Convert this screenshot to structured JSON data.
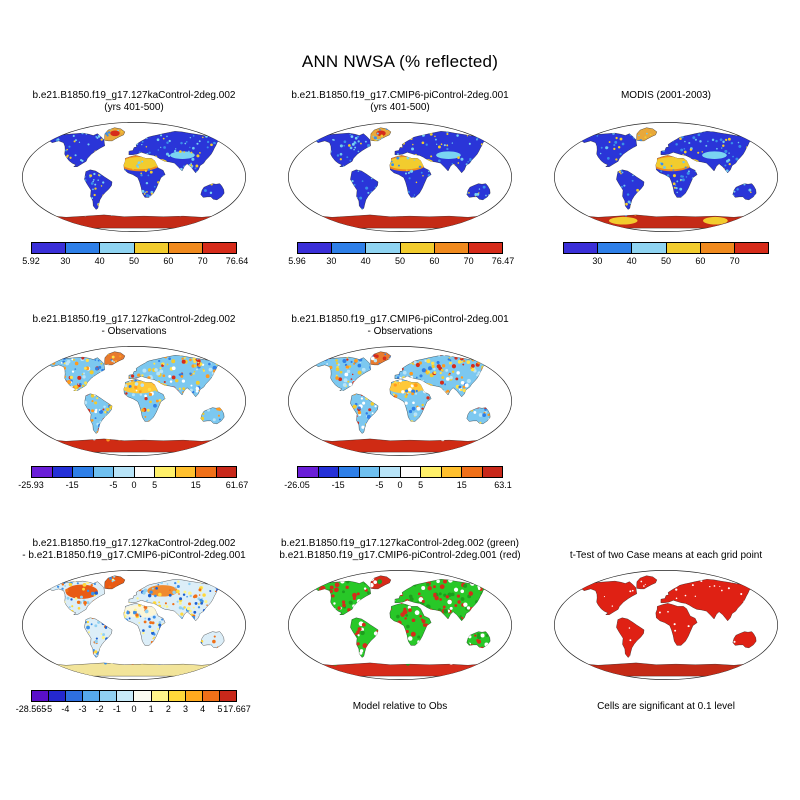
{
  "figure_title": "ANN NWSA (% reflected)",
  "rows": [
    {
      "name": "climatology",
      "panels": [
        {
          "name": "case1-climo",
          "col": 0,
          "title_lines": [
            "b.e21.B1850.f19_g17.127kaControl-2deg.002",
            "(yrs 401-500)"
          ],
          "map_style": "model_albedo",
          "colorbar": {
            "colors": [
              "#3a2fd8",
              "#2e7fe8",
              "#8fd4f2",
              "#f2cc2e",
              "#f08a1e",
              "#d62b1a"
            ],
            "ticks": [
              "5.92",
              "30",
              "40",
              "50",
              "60",
              "70",
              "76.64"
            ],
            "ticks_pos": [
              0,
              0.167,
              0.333,
              0.5,
              0.667,
              0.833,
              1
            ]
          }
        },
        {
          "name": "case2-climo",
          "col": 1,
          "title_lines": [
            "b.e21.B1850.f19_g17.CMIP6-piControl-2deg.001",
            "(yrs 401-500)"
          ],
          "map_style": "model_albedo2",
          "colorbar": {
            "colors": [
              "#3a2fd8",
              "#2e7fe8",
              "#8fd4f2",
              "#f2cc2e",
              "#f08a1e",
              "#d62b1a"
            ],
            "ticks": [
              "5.96",
              "30",
              "40",
              "50",
              "60",
              "70",
              "76.47"
            ],
            "ticks_pos": [
              0,
              0.167,
              0.333,
              0.5,
              0.667,
              0.833,
              1
            ]
          }
        },
        {
          "name": "modis-climo",
          "col": 2,
          "title_lines": [
            "MODIS (2001-2003)"
          ],
          "map_style": "modis_albedo",
          "colorbar": {
            "colors": [
              "#3a2fd8",
              "#2e7fe8",
              "#8fd4f2",
              "#f2cc2e",
              "#f08a1e",
              "#d62b1a"
            ],
            "ticks": [
              "30",
              "40",
              "50",
              "60",
              "70"
            ],
            "ticks_pos": [
              0.167,
              0.333,
              0.5,
              0.667,
              0.833
            ]
          }
        }
      ]
    },
    {
      "name": "model-minus-obs",
      "panels": [
        {
          "name": "case1-minus-obs",
          "col": 0,
          "title_lines": [
            "b.e21.B1850.f19_g17.127kaControl-2deg.002",
            "- Observations"
          ],
          "map_style": "diff_obs",
          "colorbar": {
            "colors": [
              "#6a1ed8",
              "#2430d8",
              "#2e7fe8",
              "#6fc0f0",
              "#b8e4f8",
              "#fcfcfc",
              "#fff06a",
              "#ffc02e",
              "#f07018",
              "#c8281a"
            ],
            "ticks": [
              "-25.93",
              "-15",
              "-5",
              "0",
              "5",
              "15",
              "61.67"
            ],
            "ticks_pos": [
              0,
              0.2,
              0.4,
              0.5,
              0.6,
              0.8,
              1
            ]
          }
        },
        {
          "name": "case2-minus-obs",
          "col": 1,
          "title_lines": [
            "b.e21.B1850.f19_g17.CMIP6-piControl-2deg.001",
            "- Observations"
          ],
          "map_style": "diff_obs2",
          "colorbar": {
            "colors": [
              "#6a1ed8",
              "#2430d8",
              "#2e7fe8",
              "#6fc0f0",
              "#b8e4f8",
              "#fcfcfc",
              "#fff06a",
              "#ffc02e",
              "#f07018",
              "#c8281a"
            ],
            "ticks": [
              "-26.05",
              "-15",
              "-5",
              "0",
              "5",
              "15",
              "63.1"
            ],
            "ticks_pos": [
              0,
              0.2,
              0.4,
              0.5,
              0.6,
              0.8,
              1
            ]
          }
        }
      ]
    },
    {
      "name": "case-difference-and-significance",
      "panels": [
        {
          "name": "case1-minus-case2",
          "col": 0,
          "title_lines": [
            "b.e21.B1850.f19_g17.127kaControl-2deg.002",
            "- b.e21.B1850.f19_g17.CMIP6-piControl-2deg.001"
          ],
          "map_style": "diff_case",
          "colorbar": {
            "colors": [
              "#5a10c8",
              "#2428d0",
              "#2e6fe0",
              "#56a8ec",
              "#8fd0f2",
              "#c8eaf8",
              "#fbfbf0",
              "#fff48a",
              "#ffd83a",
              "#ffaa1e",
              "#f07018",
              "#c8281a"
            ],
            "ticks": [
              "-28.565",
              "-5",
              "-4",
              "-3",
              "-2",
              "-1",
              "0",
              "1",
              "2",
              "3",
              "4",
              "5",
              "17.667"
            ],
            "ticks_pos": [
              0,
              0.0833,
              0.1667,
              0.25,
              0.3333,
              0.4167,
              0.5,
              0.5833,
              0.6667,
              0.75,
              0.8333,
              0.9167,
              1
            ]
          }
        },
        {
          "name": "model-vs-obs-significance",
          "col": 1,
          "title_lines": [
            "b.e21.B1850.f19_g17.127kaControl-2deg.002 (green)",
            "b.e21.B1850.f19_g17.CMIP6-piControl-2deg.001 (red)"
          ],
          "map_style": "sig_green_red",
          "caption": "Model relative to Obs"
        },
        {
          "name": "ttest-significance",
          "col": 2,
          "title_lines": [
            "",
            "t-Test of two Case means at each grid point"
          ],
          "map_style": "ttest_red",
          "caption": "Cells are significant at 0.1 level"
        }
      ]
    }
  ],
  "map_styles": {
    "model_albedo": {
      "regions": {
        "land": "#2a35d8",
        "greenland": "#e8a83a",
        "antarctica": "#c42a16"
      },
      "patches": [
        {
          "id": "sahara_ring",
          "color": "#f08a1e"
        },
        {
          "id": "sahara",
          "color": "#f2cc2e"
        },
        {
          "id": "arabia",
          "color": "#f2cc2e"
        },
        {
          "id": "central_asia",
          "color": "#7ad4f2"
        },
        {
          "id": "greenland_spot",
          "color": "#d62b1a"
        }
      ],
      "speckle": {
        "seed": 7,
        "count": 420,
        "colors": [
          "#6fc8f0",
          "#3a8fe8",
          "#f2cc2e",
          "#7ad4f2"
        ],
        "rmin": 0.7,
        "rmax": 1.6
      }
    },
    "model_albedo2": {
      "regions": {
        "land": "#2a35d8",
        "greenland": "#e8a83a",
        "antarctica": "#c42a16"
      },
      "patches": [
        {
          "id": "sahara_ring",
          "color": "#f08a1e"
        },
        {
          "id": "sahara",
          "color": "#f2cc2e"
        },
        {
          "id": "arabia",
          "color": "#f2cc2e"
        },
        {
          "id": "central_asia",
          "color": "#7ad4f2"
        },
        {
          "id": "greenland_spot",
          "color": "#d62b1a"
        }
      ],
      "speckle": {
        "seed": 13,
        "count": 420,
        "colors": [
          "#6fc8f0",
          "#3a8fe8",
          "#f2cc2e",
          "#7ad4f2"
        ],
        "rmin": 0.7,
        "rmax": 1.6
      }
    },
    "modis_albedo": {
      "regions": {
        "land": "#2a35d8",
        "greenland": "#e8a83a",
        "antarctica": "#c42a16"
      },
      "patches": [
        {
          "id": "sahara_ring",
          "color": "#f08a1e"
        },
        {
          "id": "sahara",
          "color": "#f2cc2e"
        },
        {
          "id": "arabia",
          "color": "#f2cc2e"
        },
        {
          "id": "central_asia",
          "color": "#7ad4f2"
        },
        {
          "id": "ant_left",
          "color": "#f2cc2e"
        },
        {
          "id": "ant_right",
          "color": "#f2cc2e"
        }
      ],
      "speckle": {
        "seed": 21,
        "count": 380,
        "colors": [
          "#6fc8f0",
          "#3a8fe8",
          "#f2cc2e"
        ],
        "rmin": 0.7,
        "rmax": 1.6
      }
    },
    "diff_obs": {
      "regions": {
        "land": "#7cc8f0",
        "greenland": "#e87a2e",
        "antarctica": "#cf2b14"
      },
      "patches": [
        {
          "id": "sahara",
          "color": "#ffc838"
        },
        {
          "id": "arabia",
          "color": "#ffc838"
        }
      ],
      "speckle": {
        "seed": 31,
        "count": 760,
        "colors": [
          "#ffe14a",
          "#ff9a1e",
          "#d62b1a",
          "#2e7fe8",
          "#b8e4f8",
          "#ffffff",
          "#f2cc2e"
        ],
        "rmin": 0.8,
        "rmax": 2.2
      }
    },
    "diff_obs2": {
      "regions": {
        "land": "#7cc8f0",
        "greenland": "#e87a2e",
        "antarctica": "#cf2b14"
      },
      "patches": [
        {
          "id": "sahara",
          "color": "#ffc838"
        },
        {
          "id": "arabia",
          "color": "#ffc838"
        }
      ],
      "speckle": {
        "seed": 41,
        "count": 760,
        "colors": [
          "#ffe14a",
          "#ff9a1e",
          "#d62b1a",
          "#2e7fe8",
          "#b8e4f8",
          "#ffffff",
          "#f2cc2e"
        ],
        "rmin": 0.8,
        "rmax": 2.2
      }
    },
    "diff_case": {
      "regions": {
        "land": "#dceef8",
        "greenland": "#e85a14",
        "antarctica": "#f2e49a"
      },
      "patches": [
        {
          "id": "na_west",
          "color": "#e85a14"
        },
        {
          "id": "russia",
          "color": "#f08a2e"
        },
        {
          "id": "sahara",
          "color": "#fbf6d8"
        }
      ],
      "speckle": {
        "seed": 51,
        "count": 700,
        "colors": [
          "#3a8fe8",
          "#8fd0f2",
          "#ffd83a",
          "#1b5fd0",
          "#fff48a",
          "#f07018"
        ],
        "rmin": 0.8,
        "rmax": 2.0
      }
    },
    "sig_green_red": {
      "regions": {
        "land": "#28c828",
        "greenland": "#d62b1a",
        "antarctica": "#d62b1a"
      },
      "patches": [],
      "speckle": {
        "seed": 61,
        "count": 520,
        "colors": [
          "#d62b1a",
          "#d62b1a",
          "#ffffff",
          "#1d9e1d"
        ],
        "rmin": 1.2,
        "rmax": 2.6
      }
    },
    "ttest_red": {
      "regions": {
        "land": "#df2114",
        "greenland": "#df2114",
        "antarctica": "#c42a16"
      },
      "patches": [],
      "speckle": {
        "seed": 71,
        "count": 90,
        "colors": [
          "#ffffff"
        ],
        "rmin": 0.5,
        "rmax": 1.2
      }
    }
  },
  "chart_data": [
    {
      "type": "heatmap",
      "panel": "case1-climo",
      "title": "b.e21.B1850.f19_g17.127kaControl-2deg.002 (yrs 401-500)",
      "variable": "ANN NWSA",
      "units": "% reflected",
      "projection": "robinson",
      "colorbar_ticks": [
        5.92,
        30,
        40,
        50,
        60,
        70,
        76.64
      ],
      "min": 5.92,
      "max": 76.64
    },
    {
      "type": "heatmap",
      "panel": "case2-climo",
      "title": "b.e21.B1850.f19_g17.CMIP6-piControl-2deg.001 (yrs 401-500)",
      "variable": "ANN NWSA",
      "units": "% reflected",
      "projection": "robinson",
      "colorbar_ticks": [
        5.96,
        30,
        40,
        50,
        60,
        70,
        76.47
      ],
      "min": 5.96,
      "max": 76.47
    },
    {
      "type": "heatmap",
      "panel": "modis-climo",
      "title": "MODIS (2001-2003)",
      "variable": "ANN NWSA",
      "units": "% reflected",
      "projection": "robinson",
      "colorbar_ticks": [
        30,
        40,
        50,
        60,
        70
      ]
    },
    {
      "type": "heatmap",
      "panel": "case1-minus-obs",
      "title": "b.e21.B1850.f19_g17.127kaControl-2deg.002 - Observations",
      "variable": "ANN NWSA difference",
      "units": "% reflected",
      "projection": "robinson",
      "colorbar_ticks": [
        -25.93,
        -15,
        -5,
        0,
        5,
        15,
        61.67
      ],
      "min": -25.93,
      "max": 61.67
    },
    {
      "type": "heatmap",
      "panel": "case2-minus-obs",
      "title": "b.e21.B1850.f19_g17.CMIP6-piControl-2deg.001 - Observations",
      "variable": "ANN NWSA difference",
      "units": "% reflected",
      "projection": "robinson",
      "colorbar_ticks": [
        -26.05,
        -15,
        -5,
        0,
        5,
        15,
        63.1
      ],
      "min": -26.05,
      "max": 63.1
    },
    {
      "type": "heatmap",
      "panel": "case1-minus-case2",
      "title": "b.e21.B1850.f19_g17.127kaControl-2deg.002 - b.e21.B1850.f19_g17.CMIP6-piControl-2deg.001",
      "variable": "ANN NWSA difference",
      "units": "% reflected",
      "projection": "robinson",
      "colorbar_ticks": [
        -28.565,
        -5,
        -4,
        -3,
        -2,
        -1,
        0,
        1,
        2,
        3,
        4,
        5,
        17.667
      ],
      "min": -28.565,
      "max": 17.667
    },
    {
      "type": "significance-map",
      "panel": "model-vs-obs-significance",
      "legend": [
        {
          "label": "b.e21.B1850.f19_g17.127kaControl-2deg.002",
          "color": "green"
        },
        {
          "label": "b.e21.B1850.f19_g17.CMIP6-piControl-2deg.001",
          "color": "red"
        }
      ],
      "note": "Model relative to Obs"
    },
    {
      "type": "significance-map",
      "panel": "ttest-significance",
      "title": "t-Test of two Case means at each grid point",
      "note": "Cells are significant at 0.1 level"
    }
  ]
}
